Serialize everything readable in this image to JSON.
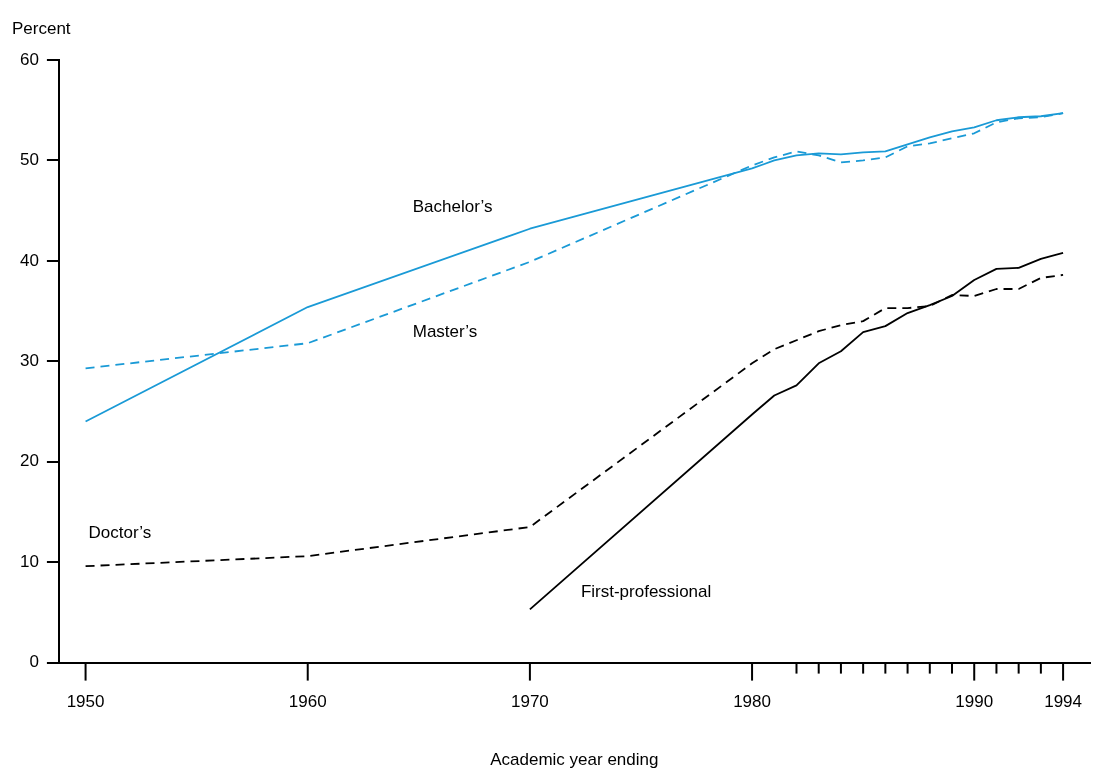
{
  "chart_data": {
    "type": "line",
    "xlabel": "Academic year ending",
    "ylabel": "Percent",
    "xlim": [
      1948.8,
      1995.2
    ],
    "ylim": [
      0,
      60
    ],
    "yticks": [
      0,
      10,
      20,
      30,
      40,
      50,
      60
    ],
    "xticks": [
      1950,
      1960,
      1970,
      1980,
      {
        "value": 1982,
        "label": null
      },
      {
        "value": 1983,
        "label": null
      },
      {
        "value": 1984,
        "label": null
      },
      {
        "value": 1985,
        "label": null
      },
      {
        "value": 1986,
        "label": null
      },
      {
        "value": 1987,
        "label": null
      },
      {
        "value": 1988,
        "label": null
      },
      {
        "value": 1989,
        "label": null
      },
      1990,
      {
        "value": 1991,
        "label": null
      },
      {
        "value": 1992,
        "label": null
      },
      {
        "value": 1993,
        "label": null
      },
      1994
    ],
    "grid": false,
    "legend": false,
    "marker": "none",
    "series": [
      {
        "name": "Bachelor’s",
        "color": "#1a9ad6",
        "line_style": "solid",
        "x": [
          1950,
          1960,
          1970,
          1980,
          1981,
          1982,
          1983,
          1984,
          1985,
          1986,
          1987,
          1988,
          1989,
          1990,
          1991,
          1992,
          1993,
          1994
        ],
        "values": [
          24.0,
          35.4,
          43.2,
          49.2,
          50.0,
          50.5,
          50.7,
          50.6,
          50.8,
          50.9,
          51.6,
          52.3,
          52.9,
          53.3,
          54.0,
          54.3,
          54.4,
          54.7
        ]
      },
      {
        "name": "Master’s",
        "color": "#1a9ad6",
        "line_style": "dashed",
        "x": [
          1950,
          1960,
          1970,
          1980,
          1981,
          1982,
          1983,
          1984,
          1985,
          1986,
          1987,
          1988,
          1989,
          1990,
          1991,
          1992,
          1993,
          1994
        ],
        "values": [
          29.3,
          31.8,
          39.9,
          49.5,
          50.3,
          50.9,
          50.5,
          49.8,
          50.0,
          50.3,
          51.4,
          51.7,
          52.2,
          52.7,
          53.8,
          54.2,
          54.3,
          54.7
        ]
      },
      {
        "name": "Doctor’s",
        "color": "#000000",
        "line_style": "dashed",
        "x": [
          1950,
          1960,
          1970,
          1980,
          1981,
          1982,
          1983,
          1984,
          1985,
          1986,
          1987,
          1988,
          1989,
          1990,
          1991,
          1992,
          1993,
          1994
        ],
        "values": [
          9.6,
          10.6,
          13.5,
          29.8,
          31.2,
          32.1,
          33.0,
          33.6,
          34.0,
          35.3,
          35.3,
          35.5,
          36.6,
          36.5,
          37.2,
          37.2,
          38.3,
          38.6
        ]
      },
      {
        "name": "First-professional",
        "color": "#000000",
        "line_style": "solid",
        "x": [
          1970,
          1980,
          1981,
          1982,
          1983,
          1984,
          1985,
          1986,
          1987,
          1988,
          1989,
          1990,
          1991,
          1992,
          1993,
          1994
        ],
        "values": [
          5.3,
          24.7,
          26.6,
          27.6,
          29.8,
          31.0,
          32.9,
          33.5,
          34.8,
          35.6,
          36.5,
          38.1,
          39.2,
          39.3,
          40.2,
          40.8
        ]
      }
    ]
  }
}
